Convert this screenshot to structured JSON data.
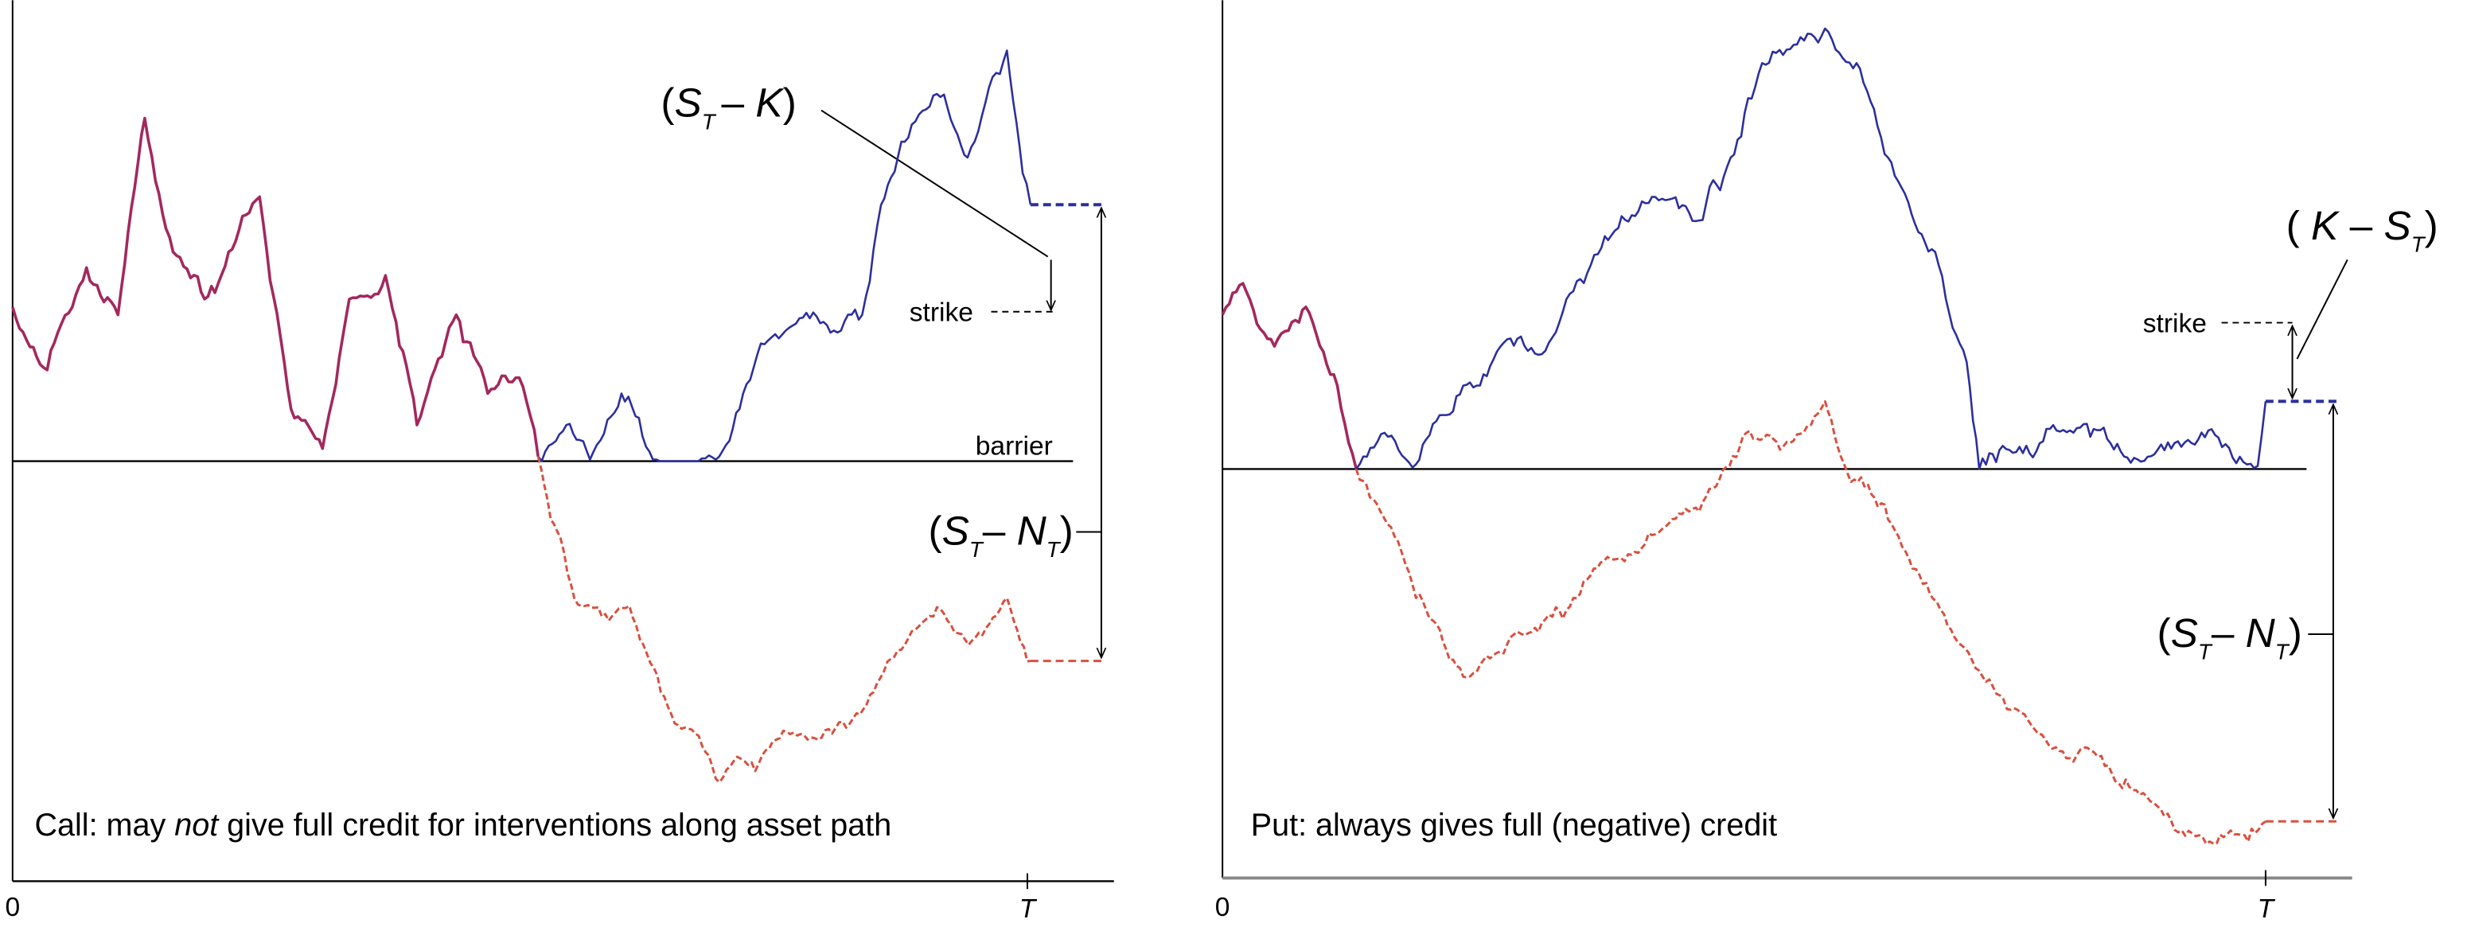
{
  "left": {
    "payoff": [
      "(",
      "S",
      "T",
      "– ",
      "K",
      ")"
    ],
    "strike": "strike",
    "barrier": "barrier",
    "spread": [
      "(",
      "S",
      "T",
      "– ",
      "N",
      "T",
      ")"
    ],
    "caption": [
      "Call: may ",
      "not",
      " give full credit for interventions along asset path"
    ],
    "x_start": "0",
    "x_end": "T"
  },
  "right": {
    "payoff": [
      "( ",
      "K",
      " – ",
      "S",
      "T",
      ")"
    ],
    "strike": "strike",
    "spread": [
      "(",
      "S",
      "T",
      "– ",
      "N",
      "T",
      ")"
    ],
    "caption": [
      "Put: always gives full (negative) credit"
    ],
    "x_start": "0",
    "x_end": "T"
  }
}
